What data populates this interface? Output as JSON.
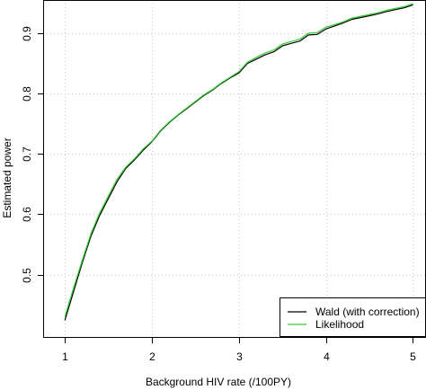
{
  "chart_data": {
    "type": "line",
    "title": "",
    "xlabel": "Background HIV rate (/100PY)",
    "ylabel": "Estimated power",
    "xlim": [
      0.75,
      5.15
    ],
    "ylim": [
      0.395,
      0.955
    ],
    "x_ticks": [
      1,
      2,
      3,
      4,
      5
    ],
    "x_tick_labels": [
      "1",
      "2",
      "3",
      "4",
      "5"
    ],
    "y_ticks": [
      0.5,
      0.6,
      0.7,
      0.8,
      0.9
    ],
    "y_tick_labels": [
      "0.5",
      "0.6",
      "0.7",
      "0.8",
      "0.9"
    ],
    "grid": true,
    "legend_position": "bottom-right",
    "x": [
      1.0,
      1.1,
      1.2,
      1.3,
      1.4,
      1.5,
      1.6,
      1.7,
      1.8,
      1.9,
      2.0,
      2.1,
      2.2,
      2.3,
      2.4,
      2.5,
      2.6,
      2.7,
      2.8,
      2.9,
      3.0,
      3.1,
      3.2,
      3.3,
      3.4,
      3.5,
      3.6,
      3.7,
      3.8,
      3.9,
      4.0,
      4.1,
      4.2,
      4.3,
      4.4,
      4.5,
      4.6,
      4.7,
      4.8,
      4.9,
      5.0
    ],
    "series": [
      {
        "name": "Wald (with correction)",
        "color": "#000000",
        "values": [
          0.424,
          0.472,
          0.52,
          0.564,
          0.598,
          0.626,
          0.654,
          0.676,
          0.69,
          0.706,
          0.72,
          0.738,
          0.752,
          0.764,
          0.775,
          0.786,
          0.797,
          0.806,
          0.817,
          0.826,
          0.834,
          0.85,
          0.857,
          0.864,
          0.869,
          0.879,
          0.883,
          0.887,
          0.897,
          0.898,
          0.907,
          0.912,
          0.917,
          0.923,
          0.926,
          0.929,
          0.932,
          0.936,
          0.939,
          0.942,
          0.947
        ]
      },
      {
        "name": "Likelihood",
        "color": "#33cc33",
        "values": [
          0.43,
          0.478,
          0.524,
          0.568,
          0.602,
          0.63,
          0.658,
          0.678,
          0.692,
          0.708,
          0.721,
          0.739,
          0.753,
          0.765,
          0.776,
          0.787,
          0.798,
          0.807,
          0.818,
          0.827,
          0.836,
          0.852,
          0.86,
          0.867,
          0.872,
          0.882,
          0.886,
          0.89,
          0.9,
          0.901,
          0.91,
          0.914,
          0.919,
          0.925,
          0.928,
          0.931,
          0.934,
          0.938,
          0.941,
          0.944,
          0.949
        ]
      }
    ]
  }
}
